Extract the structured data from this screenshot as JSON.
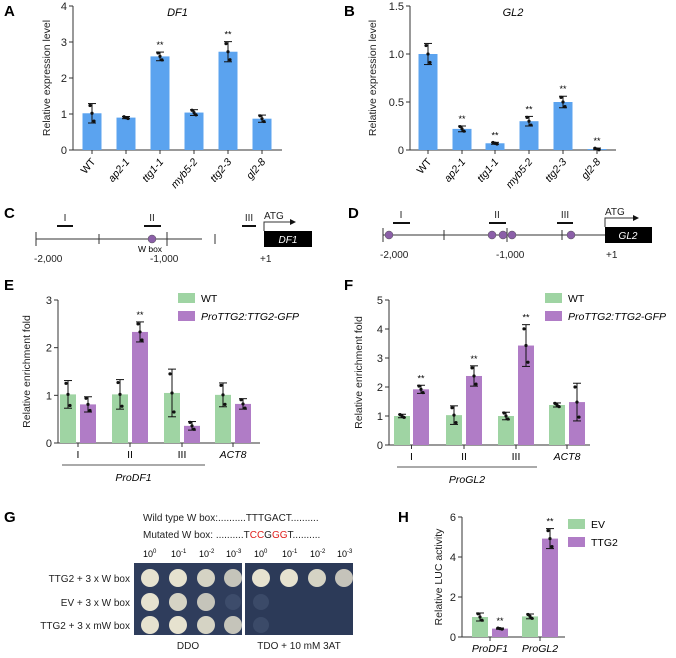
{
  "panel_labels": [
    "A",
    "B",
    "C",
    "D",
    "E",
    "F",
    "G",
    "H"
  ],
  "colors": {
    "blue": "#5ba3ef",
    "green": "#9fd4a3",
    "purple": "#b07cc6"
  },
  "chart_data": [
    {
      "id": "A",
      "type": "bar",
      "title": "DF1",
      "ylabel": "Relative expression level",
      "ylim": [
        0,
        4
      ],
      "yticks": [
        "0",
        "1",
        "2",
        "3",
        "4"
      ],
      "ytick_values": [
        0,
        1,
        2,
        3,
        4
      ],
      "categories": [
        "WT",
        "ap2-1",
        "ttg1-1",
        "myb5-2",
        "ttg2-3",
        "gl2-8"
      ],
      "values": [
        1.02,
        0.9,
        2.6,
        1.04,
        2.73,
        0.87
      ],
      "errors": [
        0.27,
        0.03,
        0.12,
        0.08,
        0.28,
        0.1
      ],
      "significance": [
        "",
        "",
        "**",
        "",
        "**",
        ""
      ]
    },
    {
      "id": "B",
      "type": "bar",
      "title": "GL2",
      "ylabel": "Relative expression level",
      "ylim": [
        0,
        1.5
      ],
      "yticks": [
        "0",
        "0.5",
        "1.0",
        "1.5"
      ],
      "ytick_values": [
        0,
        0.5,
        1.0,
        1.5
      ],
      "categories": [
        "WT",
        "ap2-1",
        "ttg1-1",
        "myb5-2",
        "ttg2-3",
        "gl2-8"
      ],
      "values": [
        1.0,
        0.22,
        0.07,
        0.3,
        0.5,
        0.01
      ],
      "errors": [
        0.11,
        0.03,
        0.01,
        0.05,
        0.06,
        0.01
      ],
      "significance": [
        "",
        "**",
        "**",
        "**",
        "**",
        "**"
      ]
    },
    {
      "id": "E",
      "type": "bar",
      "ylabel": "Relative enrichment fold",
      "ylim": [
        0,
        3
      ],
      "yticks": [
        "0",
        "1",
        "2",
        "3"
      ],
      "ytick_values": [
        0,
        1,
        2,
        3
      ],
      "categories": [
        "I",
        "II",
        "III",
        "ACT8"
      ],
      "group_label": "ProDF1",
      "legend_position": "top-right",
      "series": [
        {
          "name": "WT",
          "values": [
            1.02,
            1.02,
            1.05,
            1.01
          ],
          "errors": [
            0.29,
            0.31,
            0.5,
            0.25
          ],
          "significance": [
            "",
            "",
            "",
            ""
          ]
        },
        {
          "name": "ProTTG2:TTG2-GFP",
          "values": [
            0.81,
            2.33,
            0.36,
            0.82
          ],
          "errors": [
            0.16,
            0.21,
            0.09,
            0.11
          ],
          "significance": [
            "",
            "**",
            "",
            ""
          ]
        }
      ]
    },
    {
      "id": "F",
      "type": "bar",
      "ylabel": "Relative enrichment fold",
      "ylim": [
        0,
        5
      ],
      "yticks": [
        "0",
        "1",
        "2",
        "3",
        "4",
        "5"
      ],
      "ytick_values": [
        0,
        1,
        2,
        3,
        4,
        5
      ],
      "categories": [
        "I",
        "II",
        "III",
        "ACT8"
      ],
      "group_label": "ProGL2",
      "legend_position": "top-right",
      "series": [
        {
          "name": "WT",
          "values": [
            1.0,
            1.03,
            1.0,
            1.38
          ],
          "errors": [
            0.06,
            0.32,
            0.13,
            0.07
          ],
          "significance": [
            "",
            "",
            "",
            ""
          ]
        },
        {
          "name": "ProTTG2:TTG2-GFP",
          "values": [
            1.92,
            2.38,
            3.43,
            1.48
          ],
          "errors": [
            0.14,
            0.35,
            0.72,
            0.65
          ],
          "significance": [
            "**",
            "**",
            "**",
            ""
          ]
        }
      ]
    },
    {
      "id": "H",
      "type": "bar",
      "ylabel": "Relative LUC activity",
      "ylim": [
        0,
        6
      ],
      "yticks": [
        "0",
        "2",
        "4",
        "6"
      ],
      "ytick_values": [
        0,
        2,
        4,
        6
      ],
      "categories": [
        "ProDF1",
        "ProGL2"
      ],
      "legend_position": "top-right",
      "series": [
        {
          "name": "EV",
          "values": [
            1.0,
            1.03
          ],
          "errors": [
            0.2,
            0.12
          ],
          "significance": [
            "",
            ""
          ]
        },
        {
          "name": "TTG2",
          "values": [
            0.42,
            4.92
          ],
          "errors": [
            0.03,
            0.5
          ],
          "significance": [
            "**",
            "**"
          ]
        }
      ]
    }
  ],
  "diagram_c": {
    "gene": "DF1",
    "atg": "ATG",
    "regions": [
      "I",
      "II",
      "III"
    ],
    "wbox_label": "W box",
    "ticks": [
      "-2,000",
      "-1,000",
      "+1"
    ]
  },
  "diagram_d": {
    "gene": "GL2",
    "atg": "ATG",
    "regions": [
      "I",
      "II",
      "III"
    ],
    "ticks": [
      "-2,000",
      "-1,000",
      "+1"
    ]
  },
  "panel_g": {
    "wild_label": "Wild type W box:",
    "wild_seq": "..........TTTGACT..........",
    "mut_label": "Mutated W box:",
    "mut_seq": [
      {
        "text": "..........T",
        "red": false
      },
      {
        "text": "CC",
        "red": true
      },
      {
        "text": "G",
        "red": false
      },
      {
        "text": "GG",
        "red": true
      },
      {
        "text": "T..........",
        "red": false
      }
    ],
    "dilution_base": "10",
    "dilution_exponents": [
      "0",
      "-1",
      "-2",
      "-3"
    ],
    "rows": [
      "TTG2 + 3 x W box",
      "EV + 3 x W box",
      "TTG2 + 3 x mW box"
    ],
    "plates": [
      "DDO",
      "TDO + 10 mM 3AT"
    ],
    "growth": [
      [
        1,
        1,
        0.8,
        0.6
      ],
      [
        1,
        0.8,
        0.6,
        0.15
      ],
      [
        1,
        1,
        0.8,
        0.6
      ],
      [
        1,
        1,
        0.8,
        0.6
      ],
      [
        0.05,
        0,
        0,
        0
      ],
      [
        0.05,
        0,
        0,
        0
      ]
    ]
  }
}
